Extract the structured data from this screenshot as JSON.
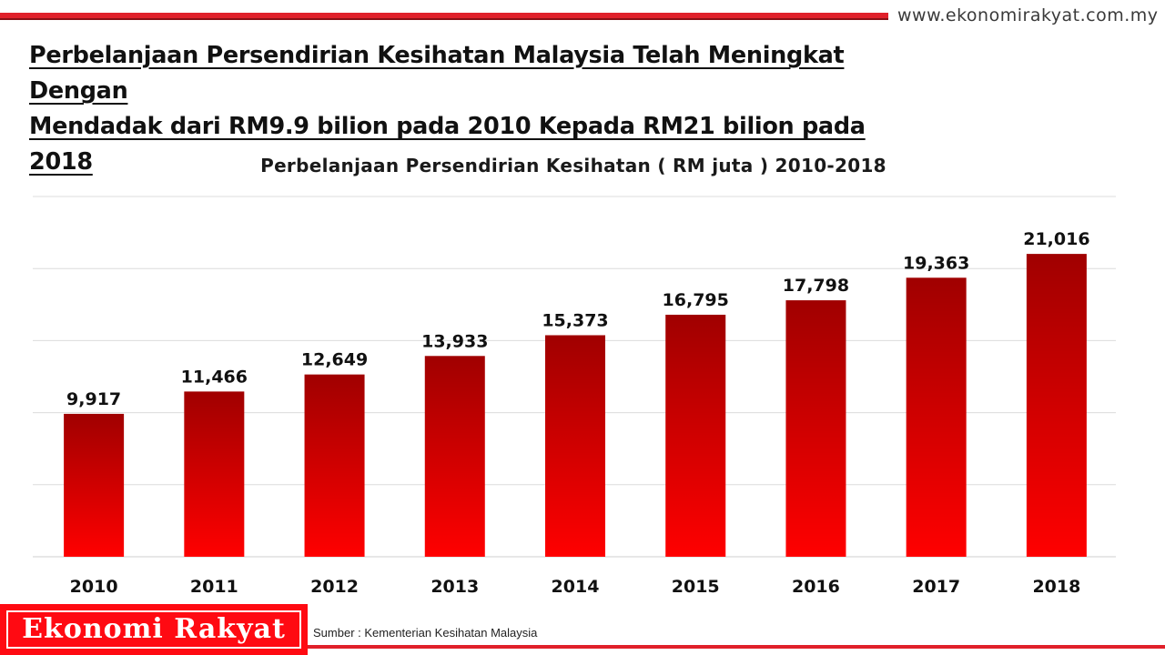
{
  "header": {
    "website": "www.ekonomirakyat.com.my",
    "headline_line1": "Perbelanjaan Persendirian Kesihatan Malaysia Telah Meningkat Dengan",
    "headline_line2": "Mendadak dari RM9.9 bilion pada 2010 Kepada RM21 bilion pada 2018"
  },
  "chart_data": {
    "type": "bar",
    "title": "Perbelanjaan Persendirian Kesihatan ( RM juta ) 2010-2018",
    "categories": [
      "2010",
      "2011",
      "2012",
      "2013",
      "2014",
      "2015",
      "2016",
      "2017",
      "2018"
    ],
    "values": [
      9917,
      11466,
      12649,
      13933,
      15373,
      16795,
      17798,
      19363,
      21016
    ],
    "value_labels": [
      "9,917",
      "11,466",
      "12,649",
      "13,933",
      "15,373",
      "16,795",
      "17,798",
      "19,363",
      "21,016"
    ],
    "xlabel": "",
    "ylabel": "",
    "ylim": [
      0,
      25000
    ],
    "grid": true,
    "legend": "none",
    "bar_color_top": "#a00000",
    "bar_color_bottom": "#ff0000"
  },
  "footer": {
    "brand": "Ekonomi Rakyat",
    "source": "Sumber  : Kementerian Kesihatan Malaysia"
  },
  "colors": {
    "accent": "#e0202a",
    "brand_bg": "#ff0a12"
  }
}
